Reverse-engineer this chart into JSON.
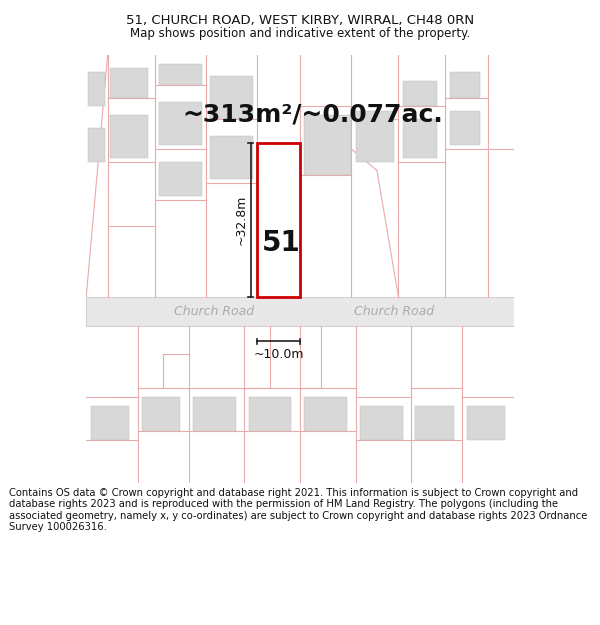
{
  "title_line1": "51, CHURCH ROAD, WEST KIRBY, WIRRAL, CH48 0RN",
  "title_line2": "Map shows position and indicative extent of the property.",
  "area_label": "~313m²/~0.077ac.",
  "property_number": "51",
  "dim_height": "~32.8m",
  "dim_width": "~10.0m",
  "road_label": "Church Road",
  "road_label2": "Church Road",
  "footer_text": "Contains OS data © Crown copyright and database right 2021. This information is subject to Crown copyright and database rights 2023 and is reproduced with the permission of HM Land Registry. The polygons (including the associated geometry, namely x, y co-ordinates) are subject to Crown copyright and database rights 2023 Ordnance Survey 100026316.",
  "bg_color": "#ffffff",
  "map_bg": "#ffffff",
  "plot_fill": "#ffffff",
  "plot_edge": "#cc0000",
  "building_fill": "#d8d8d8",
  "road_fill": "#e8e8e8",
  "parcel_edge": "#e8aaaa",
  "title_fontsize": 9.5,
  "subtitle_fontsize": 8.5,
  "area_fontsize": 18,
  "number_fontsize": 20,
  "dim_fontsize": 9,
  "road_fontsize": 9,
  "footer_fontsize": 7.2
}
